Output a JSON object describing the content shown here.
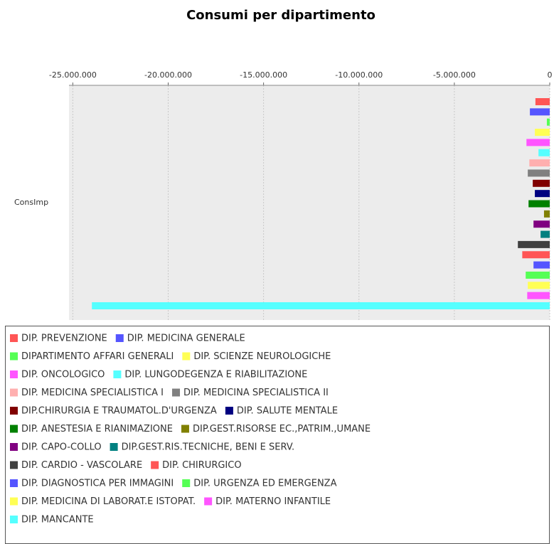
{
  "chart_data": {
    "type": "hbar",
    "title": "Consumi per dipartimento",
    "categories": [
      "ConsImp"
    ],
    "xlim": [
      -25200000,
      0
    ],
    "xticks": [
      {
        "value": -25000000,
        "label": "-25.000.000"
      },
      {
        "value": -20000000,
        "label": "-20.000.000"
      },
      {
        "value": -15000000,
        "label": "-15.000.000"
      },
      {
        "value": -10000000,
        "label": "-10.000.000"
      },
      {
        "value": -5000000,
        "label": "-5.000.000"
      },
      0
    ],
    "grid": true,
    "legend": "bottom",
    "series": [
      {
        "name": "DIP. PREVENZIONE",
        "color": "#ff5555",
        "values": [
          -750000
        ]
      },
      {
        "name": "DIP. MEDICINA GENERALE",
        "color": "#5555ff",
        "values": [
          -1040000
        ]
      },
      {
        "name": "DIPARTIMENTO AFFARI GENERALI",
        "color": "#55ff55",
        "values": [
          -150000
        ]
      },
      {
        "name": "DIP. SCIENZE NEUROLOGICHE",
        "color": "#ffff55",
        "values": [
          -780000
        ]
      },
      {
        "name": "DIP. ONCOLOGICO",
        "color": "#ff55ff",
        "values": [
          -1220000
        ]
      },
      {
        "name": "DIP. LUNGODEGENZA E RIABILITAZIONE",
        "color": "#55ffff",
        "values": [
          -590000
        ]
      },
      {
        "name": "DIP. MEDICINA SPECIALISTICA I",
        "color": "#ffafaf",
        "values": [
          -1070000
        ]
      },
      {
        "name": "DIP. MEDICINA SPECIALISTICA II",
        "color": "#808080",
        "values": [
          -1150000
        ]
      },
      {
        "name": "DIP.CHIRURGIA E TRAUMATOL.D'URGENZA",
        "color": "#800000",
        "values": [
          -890000
        ]
      },
      {
        "name": "DIP. SALUTE MENTALE",
        "color": "#000080",
        "values": [
          -780000
        ]
      },
      {
        "name": "DIP. ANESTESIA E RIANIMAZIONE",
        "color": "#008000",
        "values": [
          -1110000
        ]
      },
      {
        "name": "DIP.GEST.RISORSE EC.,PATRIM.,UMANE",
        "color": "#808000",
        "values": [
          -300000
        ]
      },
      {
        "name": "DIP. CAPO-COLLO",
        "color": "#800080",
        "values": [
          -850000
        ]
      },
      {
        "name": "DIP.GEST.RIS.TECNICHE, BENI E SERV.",
        "color": "#008080",
        "values": [
          -480000
        ]
      },
      {
        "name": "DIP. CARDIO - VASCOLARE",
        "color": "#404040",
        "values": [
          -1670000
        ]
      },
      {
        "name": "DIP. CHIRURGICO",
        "color": "#ff5555",
        "values": [
          -1440000
        ]
      },
      {
        "name": "DIP. DIAGNOSTICA PER IMMAGINI",
        "color": "#5555ff",
        "values": [
          -850000
        ]
      },
      {
        "name": "DIP. URGENZA ED EMERGENZA",
        "color": "#55ff55",
        "values": [
          -1260000
        ]
      },
      {
        "name": "DIP. MEDICINA DI LABORAT.E ISTOPAT.",
        "color": "#ffff55",
        "values": [
          -1150000
        ]
      },
      {
        "name": "DIP. MATERNO INFANTILE",
        "color": "#ff55ff",
        "values": [
          -1180000
        ]
      },
      {
        "name": "DIP. MANCANTE",
        "color": "#55ffff",
        "values": [
          -24000000
        ]
      }
    ]
  }
}
